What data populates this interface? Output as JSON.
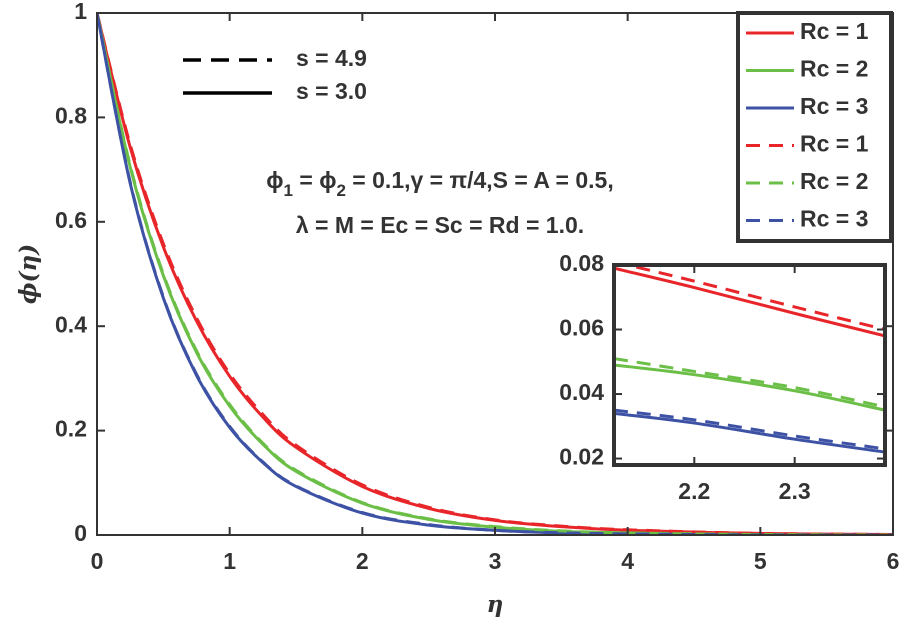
{
  "chart_data": [
    {
      "type": "line",
      "xlabel": "η",
      "ylabel": "ϕ(η)",
      "x": [
        0,
        0.25,
        0.5,
        0.75,
        1,
        1.25,
        1.5,
        2,
        2.5,
        3,
        3.5,
        4,
        5,
        6
      ],
      "xlim": [
        0,
        6
      ],
      "ylim": [
        0,
        1
      ],
      "xticks": [
        0,
        1,
        2,
        3,
        4,
        5,
        6
      ],
      "yticks": [
        0,
        0.2,
        0.4,
        0.6,
        0.8,
        1
      ],
      "legend": "upper right",
      "series": [
        {
          "name": "Rc = 1",
          "color": "#e8262a",
          "dash": false,
          "values": [
            1,
            0.743,
            0.552,
            0.41,
            0.304,
            0.226,
            0.168,
            0.093,
            0.051,
            0.028,
            0.016,
            0.009,
            0.003,
            0.001
          ]
        },
        {
          "name": "Rc = 2",
          "color": "#6bbf47",
          "dash": false,
          "values": [
            1,
            0.705,
            0.497,
            0.35,
            0.247,
            0.174,
            0.122,
            0.061,
            0.03,
            0.015,
            0.007,
            0.004,
            0.001,
            0
          ]
        },
        {
          "name": "Rc = 3",
          "color": "#3d52a5",
          "dash": false,
          "values": [
            1,
            0.674,
            0.454,
            0.306,
            0.206,
            0.139,
            0.093,
            0.042,
            0.019,
            0.009,
            0.004,
            0.002,
            0,
            0
          ]
        },
        {
          "name": "Rc = 1",
          "color": "#e8262a",
          "dash": true,
          "values": [
            1,
            0.748,
            0.558,
            0.416,
            0.309,
            0.231,
            0.172,
            0.096,
            0.053,
            0.029,
            0.017,
            0.01,
            0.003,
            0.001
          ]
        },
        {
          "name": "Rc = 2",
          "color": "#6bbf47",
          "dash": true,
          "values": [
            1,
            0.708,
            0.5,
            0.353,
            0.25,
            0.176,
            0.124,
            0.062,
            0.031,
            0.016,
            0.008,
            0.004,
            0.001,
            0
          ]
        },
        {
          "name": "Rc = 3",
          "color": "#3d52a5",
          "dash": true,
          "values": [
            1,
            0.676,
            0.456,
            0.308,
            0.208,
            0.14,
            0.094,
            0.043,
            0.02,
            0.009,
            0.004,
            0.002,
            0,
            0
          ]
        }
      ],
      "style_legend": [
        {
          "label": "s = 4.9",
          "dash": true
        },
        {
          "label": "s = 3.0",
          "dash": false
        }
      ],
      "annotation_lines": [
        [
          {
            "text": "ϕ"
          },
          {
            "text": "1",
            "sub": true
          },
          {
            "text": " = ϕ"
          },
          {
            "text": "2",
            "sub": true
          },
          {
            "text": " = 0.1,γ = π/4,S = A = 0.5,"
          }
        ],
        [
          {
            "text": "λ = M = Ec = Sc = Rd = 1.0."
          }
        ]
      ]
    },
    {
      "type": "line",
      "x": [
        2.12,
        2.2,
        2.3,
        2.39
      ],
      "xlim": [
        2.12,
        2.39
      ],
      "ylim": [
        0.018,
        0.08
      ],
      "xticks": [
        2.2,
        2.3
      ],
      "yticks": [
        0.02,
        0.04,
        0.06,
        0.08
      ],
      "series": [
        {
          "color": "#e8262a",
          "dash": false,
          "values": [
            0.079,
            0.073,
            0.065,
            0.058
          ]
        },
        {
          "color": "#6bbf47",
          "dash": false,
          "values": [
            0.049,
            0.046,
            0.041,
            0.035
          ]
        },
        {
          "color": "#3d52a5",
          "dash": false,
          "values": [
            0.034,
            0.031,
            0.026,
            0.022
          ]
        },
        {
          "color": "#e8262a",
          "dash": true,
          "values": [
            0.081,
            0.075,
            0.067,
            0.06
          ]
        },
        {
          "color": "#6bbf47",
          "dash": true,
          "values": [
            0.051,
            0.047,
            0.042,
            0.036
          ]
        },
        {
          "color": "#3d52a5",
          "dash": true,
          "values": [
            0.035,
            0.032,
            0.027,
            0.023
          ]
        }
      ]
    }
  ]
}
